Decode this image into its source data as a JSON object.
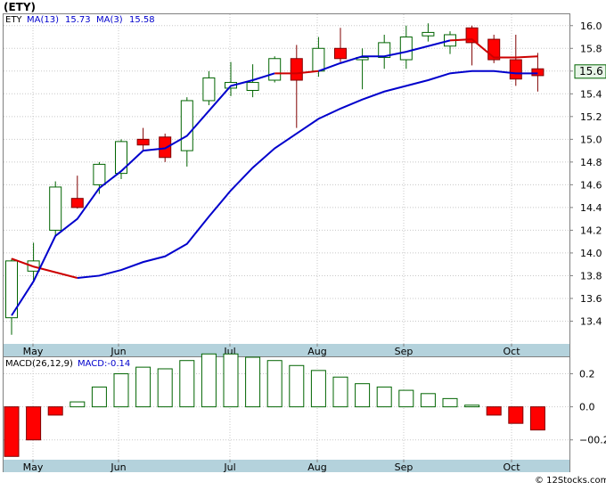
{
  "title": "(ETY)",
  "legend": {
    "symbol": "ETY",
    "ma13_label": "MA(13)",
    "ma13_value": "15.73",
    "ma3_label": "MA(3)",
    "ma3_value": "15.58"
  },
  "macd_legend": {
    "params": "MACD(26,12,9)",
    "value_label": "MACD:-0.14"
  },
  "last_price_label": "15.6",
  "watermark": "© 12Stocks.com",
  "colors": {
    "up_candle_stroke": "#006400",
    "down_candle_fill": "#ff0000",
    "ma13_line": "#0000cc",
    "ma3_line": "#cc0000",
    "axis_band": "#b4d2dc",
    "grid": "#c8c8c8"
  },
  "chart_data": [
    {
      "type": "candlestick",
      "name": "price",
      "x_ticks": [
        "May",
        "Jun",
        "Jul",
        "Aug",
        "Sep",
        "Oct"
      ],
      "ylim": [
        13.2,
        16.1
      ],
      "yticks": [
        13.4,
        13.6,
        13.8,
        14.0,
        14.2,
        14.4,
        14.6,
        14.8,
        15.0,
        15.2,
        15.4,
        15.6,
        15.8,
        16.0
      ],
      "grid": true,
      "last_price": 15.6,
      "candles": [
        {
          "o": 13.43,
          "h": 13.95,
          "l": 13.28,
          "c": 13.93
        },
        {
          "o": 13.84,
          "h": 14.09,
          "l": 13.75,
          "c": 13.93
        },
        {
          "o": 14.2,
          "h": 14.63,
          "l": 14.15,
          "c": 14.58
        },
        {
          "o": 14.48,
          "h": 14.68,
          "l": 14.39,
          "c": 14.4
        },
        {
          "o": 14.6,
          "h": 14.8,
          "l": 14.52,
          "c": 14.78
        },
        {
          "o": 14.7,
          "h": 15.0,
          "l": 14.65,
          "c": 14.98
        },
        {
          "o": 15.0,
          "h": 15.1,
          "l": 14.9,
          "c": 14.95
        },
        {
          "o": 15.02,
          "h": 15.05,
          "l": 14.8,
          "c": 14.84
        },
        {
          "o": 14.9,
          "h": 15.37,
          "l": 14.76,
          "c": 15.34
        },
        {
          "o": 15.34,
          "h": 15.6,
          "l": 15.3,
          "c": 15.54
        },
        {
          "o": 15.45,
          "h": 15.68,
          "l": 15.38,
          "c": 15.5
        },
        {
          "o": 15.43,
          "h": 15.66,
          "l": 15.37,
          "c": 15.5
        },
        {
          "o": 15.52,
          "h": 15.73,
          "l": 15.5,
          "c": 15.71
        },
        {
          "o": 15.71,
          "h": 15.83,
          "l": 15.1,
          "c": 15.52
        },
        {
          "o": 15.6,
          "h": 15.9,
          "l": 15.55,
          "c": 15.8
        },
        {
          "o": 15.8,
          "h": 15.98,
          "l": 15.68,
          "c": 15.71
        },
        {
          "o": 15.7,
          "h": 15.8,
          "l": 15.44,
          "c": 15.72
        },
        {
          "o": 15.72,
          "h": 15.92,
          "l": 15.62,
          "c": 15.85
        },
        {
          "o": 15.7,
          "h": 16.0,
          "l": 15.62,
          "c": 15.9
        },
        {
          "o": 15.91,
          "h": 16.02,
          "l": 15.86,
          "c": 15.94
        },
        {
          "o": 15.82,
          "h": 15.95,
          "l": 15.75,
          "c": 15.92
        },
        {
          "o": 15.98,
          "h": 16.0,
          "l": 15.65,
          "c": 15.85
        },
        {
          "o": 15.88,
          "h": 15.92,
          "l": 15.67,
          "c": 15.7
        },
        {
          "o": 15.7,
          "h": 15.92,
          "l": 15.47,
          "c": 15.53
        },
        {
          "o": 15.62,
          "h": 15.76,
          "l": 15.42,
          "c": 15.56
        }
      ],
      "ma13": [
        13.45,
        13.75,
        14.15,
        14.3,
        14.57,
        14.72,
        14.9,
        14.92,
        15.03,
        15.25,
        15.47,
        15.52,
        15.58,
        15.58,
        15.6,
        15.67,
        15.73,
        15.73,
        15.77,
        15.82,
        15.87,
        15.88,
        15.72,
        15.72,
        15.73
      ],
      "ma3": [
        13.95,
        13.88,
        null,
        13.78,
        13.8,
        13.85,
        13.92,
        13.97,
        14.08,
        14.32,
        14.55,
        14.75,
        14.92,
        15.05,
        15.18,
        15.27,
        15.35,
        15.42,
        15.47,
        15.52,
        15.58,
        15.6,
        15.6,
        15.58,
        15.58
      ],
      "ma3_red_from": 0,
      "ma3_red_to": 3,
      "ma13_red_from": 12,
      "ma13_red_to": 14,
      "ma13_red_from2": 20,
      "ma13_red_to2": 24
    },
    {
      "type": "bar",
      "name": "macd",
      "ylim": [
        -0.32,
        0.3
      ],
      "yticks": [
        -0.2,
        0.0,
        0.2
      ],
      "x_ticks": [
        "May",
        "Jun",
        "Jul",
        "Aug",
        "Sep",
        "Oct"
      ],
      "grid": true,
      "values": [
        -0.3,
        -0.2,
        -0.05,
        0.03,
        0.12,
        0.2,
        0.24,
        0.23,
        0.28,
        0.32,
        0.32,
        0.3,
        0.28,
        0.25,
        0.22,
        0.18,
        0.14,
        0.12,
        0.1,
        0.08,
        0.05,
        0.01,
        -0.05,
        -0.1,
        -0.14
      ]
    }
  ]
}
